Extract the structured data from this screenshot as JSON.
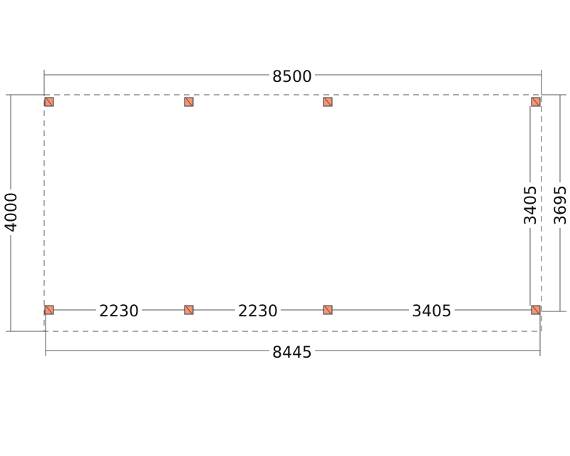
{
  "dimensions": {
    "overall_width": "8500",
    "overall_depth": "4000",
    "post_span_width": "8445",
    "post_span_depth_inner": "3405",
    "post_span_depth_outer": "3695",
    "bottom_spans": [
      "2230",
      "2230",
      "3405"
    ]
  },
  "colors": {
    "post_fill": "#f0967a",
    "line": "#555555"
  },
  "posts": {
    "top_row_count": 4,
    "bottom_row_count": 4
  }
}
